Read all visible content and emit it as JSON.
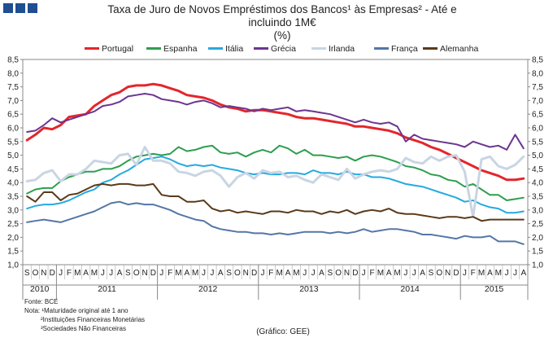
{
  "header": {
    "title_line1": "Taxa de Juro de Novos Empréstimos dos Bancos¹ às Empresas² - Até e",
    "title_line2": "incluindo 1M€",
    "title_line3": "(%)"
  },
  "footer": {
    "source": "Fonte: BCE",
    "note1": "Nota: ¹Maturidade original até 1 ano",
    "note2": "²Instituições Financeiras Monetárias",
    "note3": "³Sociedades Não Financeiras",
    "credit": "(Gráfico: GEE)"
  },
  "chart_data": {
    "type": "line",
    "title": "Taxa de Juro de Novos Empréstimos dos Bancos às Empresas - Até e incluindo 1M€ (%)",
    "ylim": [
      1.0,
      8.5
    ],
    "yticks": [
      "1,0",
      "1,5",
      "2,0",
      "2,5",
      "3,0",
      "3,5",
      "4,0",
      "4,5",
      "5,0",
      "5,5",
      "6,0",
      "6,5",
      "7,0",
      "7,5",
      "8,0",
      "8,5"
    ],
    "ytick_values": [
      1.0,
      1.5,
      2.0,
      2.5,
      3.0,
      3.5,
      4.0,
      4.5,
      5.0,
      5.5,
      6.0,
      6.5,
      7.0,
      7.5,
      8.0,
      8.5
    ],
    "month_labels": [
      "S",
      "O",
      "N",
      "D",
      "J",
      "F",
      "M",
      "A",
      "M",
      "J",
      "J",
      "A",
      "S",
      "O",
      "N",
      "D",
      "J",
      "F",
      "M",
      "A",
      "M",
      "J",
      "J",
      "A",
      "S",
      "O",
      "N",
      "D",
      "J",
      "F",
      "M",
      "A",
      "M",
      "J",
      "J",
      "A",
      "S",
      "O",
      "N",
      "D",
      "J",
      "F",
      "M",
      "A",
      "M",
      "J",
      "J",
      "A",
      "S",
      "O",
      "N",
      "D",
      "J",
      "F",
      "M",
      "A",
      "M",
      "J",
      "J",
      "A"
    ],
    "years": [
      {
        "label": "2010",
        "start": 0,
        "count": 4
      },
      {
        "label": "2011",
        "start": 4,
        "count": 12
      },
      {
        "label": "2012",
        "start": 16,
        "count": 12
      },
      {
        "label": "2013",
        "start": 28,
        "count": 12
      },
      {
        "label": "2014",
        "start": 40,
        "count": 12
      },
      {
        "label": "2015",
        "start": 52,
        "count": 8
      }
    ],
    "series": [
      {
        "name": "Portugal",
        "color": "#e3262b",
        "width": 3.0,
        "values": [
          5.55,
          5.75,
          6.0,
          5.95,
          6.1,
          6.4,
          6.45,
          6.5,
          6.8,
          7.0,
          7.2,
          7.3,
          7.5,
          7.55,
          7.55,
          7.6,
          7.55,
          7.45,
          7.35,
          7.2,
          7.15,
          7.1,
          7.0,
          6.85,
          6.75,
          6.7,
          6.6,
          6.65,
          6.65,
          6.6,
          6.55,
          6.5,
          6.4,
          6.35,
          6.35,
          6.3,
          6.25,
          6.2,
          6.15,
          6.05,
          6.05,
          6.0,
          5.95,
          5.9,
          5.8,
          5.65,
          5.55,
          5.45,
          5.3,
          5.2,
          5.05,
          4.9,
          4.75,
          4.6,
          4.45,
          4.35,
          4.25,
          4.1,
          4.1,
          4.15
        ]
      },
      {
        "name": "Espanha",
        "color": "#2e9e4f",
        "width": 2.0,
        "values": [
          3.6,
          3.75,
          3.8,
          3.8,
          4.05,
          4.2,
          4.3,
          4.4,
          4.4,
          4.5,
          4.5,
          4.6,
          4.8,
          4.95,
          5.0,
          5.05,
          5.0,
          5.05,
          5.3,
          5.15,
          5.2,
          5.3,
          5.35,
          5.1,
          5.05,
          5.1,
          4.95,
          5.1,
          5.2,
          5.1,
          5.35,
          5.25,
          5.05,
          5.2,
          5.0,
          5.0,
          4.95,
          4.9,
          4.95,
          4.8,
          4.95,
          5.0,
          4.95,
          4.85,
          4.75,
          4.6,
          4.55,
          4.45,
          4.3,
          4.25,
          4.1,
          4.05,
          3.85,
          3.95,
          3.75,
          3.55,
          3.55,
          3.35,
          3.4,
          3.45
        ]
      },
      {
        "name": "Itália",
        "color": "#26a9e0",
        "width": 2.0,
        "values": [
          3.05,
          3.15,
          3.2,
          3.2,
          3.25,
          3.35,
          3.5,
          3.65,
          3.75,
          4.0,
          4.1,
          4.3,
          4.45,
          4.65,
          4.85,
          4.9,
          4.95,
          4.85,
          4.7,
          4.6,
          4.65,
          4.6,
          4.65,
          4.55,
          4.5,
          4.45,
          4.35,
          4.3,
          4.35,
          4.3,
          4.3,
          4.35,
          4.35,
          4.3,
          4.45,
          4.35,
          4.35,
          4.3,
          4.4,
          4.3,
          4.3,
          4.2,
          4.2,
          4.15,
          4.05,
          3.95,
          3.9,
          3.85,
          3.75,
          3.65,
          3.55,
          3.45,
          3.3,
          3.35,
          3.2,
          3.1,
          3.05,
          2.9,
          2.9,
          2.95
        ]
      },
      {
        "name": "Grécia",
        "color": "#6c3591",
        "width": 2.0,
        "values": [
          5.85,
          5.9,
          6.1,
          6.35,
          6.2,
          6.3,
          6.4,
          6.5,
          6.6,
          6.8,
          6.85,
          6.95,
          7.15,
          7.2,
          7.25,
          7.2,
          7.05,
          7.0,
          6.95,
          6.85,
          6.95,
          7.0,
          6.9,
          6.75,
          6.8,
          6.75,
          6.7,
          6.6,
          6.7,
          6.65,
          6.7,
          6.75,
          6.6,
          6.65,
          6.6,
          6.55,
          6.5,
          6.4,
          6.3,
          6.2,
          6.3,
          6.2,
          6.15,
          6.2,
          6.05,
          5.5,
          5.75,
          5.6,
          5.55,
          5.5,
          5.45,
          5.4,
          5.3,
          5.5,
          5.4,
          5.3,
          5.35,
          5.2,
          5.75,
          5.25
        ]
      },
      {
        "name": "Irlanda",
        "color": "#c9d5e3",
        "width": 3.0,
        "values": [
          4.05,
          4.1,
          4.35,
          4.45,
          4.05,
          4.3,
          4.3,
          4.5,
          4.8,
          4.75,
          4.7,
          5.0,
          5.05,
          4.65,
          5.3,
          4.8,
          4.8,
          4.7,
          4.4,
          4.35,
          4.25,
          4.4,
          4.45,
          4.25,
          3.85,
          4.2,
          4.35,
          4.15,
          4.45,
          4.35,
          4.4,
          4.2,
          4.25,
          4.1,
          4.0,
          4.3,
          4.2,
          4.1,
          4.5,
          4.15,
          4.3,
          4.4,
          4.45,
          4.4,
          4.5,
          4.9,
          4.75,
          4.7,
          4.95,
          4.8,
          4.95,
          5.0,
          4.4,
          2.75,
          4.85,
          4.95,
          4.6,
          4.5,
          4.65,
          4.95
        ]
      },
      {
        "name": "França",
        "color": "#5576a6",
        "width": 2.0,
        "values": [
          2.55,
          2.6,
          2.65,
          2.6,
          2.55,
          2.65,
          2.75,
          2.85,
          2.95,
          3.1,
          3.25,
          3.3,
          3.2,
          3.25,
          3.2,
          3.2,
          3.1,
          3.0,
          2.85,
          2.75,
          2.65,
          2.6,
          2.4,
          2.3,
          2.25,
          2.2,
          2.2,
          2.15,
          2.15,
          2.1,
          2.15,
          2.1,
          2.15,
          2.2,
          2.2,
          2.2,
          2.15,
          2.2,
          2.15,
          2.2,
          2.3,
          2.2,
          2.25,
          2.3,
          2.3,
          2.25,
          2.2,
          2.1,
          2.1,
          2.05,
          2.0,
          1.95,
          2.05,
          2.0,
          2.0,
          2.05,
          1.85,
          1.85,
          1.85,
          1.75
        ]
      },
      {
        "name": "Alemanha",
        "color": "#5a3a1a",
        "width": 2.0,
        "values": [
          3.5,
          3.3,
          3.65,
          3.65,
          3.35,
          3.55,
          3.6,
          3.75,
          3.9,
          3.95,
          3.9,
          3.95,
          3.95,
          3.9,
          3.9,
          3.95,
          3.55,
          3.5,
          3.5,
          3.3,
          3.3,
          3.35,
          3.05,
          2.95,
          3.0,
          2.9,
          2.95,
          2.9,
          2.85,
          2.95,
          2.95,
          2.9,
          3.0,
          2.95,
          2.95,
          2.85,
          2.95,
          2.9,
          3.0,
          2.85,
          2.95,
          3.0,
          2.95,
          3.05,
          2.9,
          2.85,
          2.85,
          2.8,
          2.75,
          2.7,
          2.75,
          2.75,
          2.7,
          2.75,
          2.6,
          2.65,
          2.65,
          2.65,
          2.65,
          2.65
        ]
      }
    ]
  }
}
